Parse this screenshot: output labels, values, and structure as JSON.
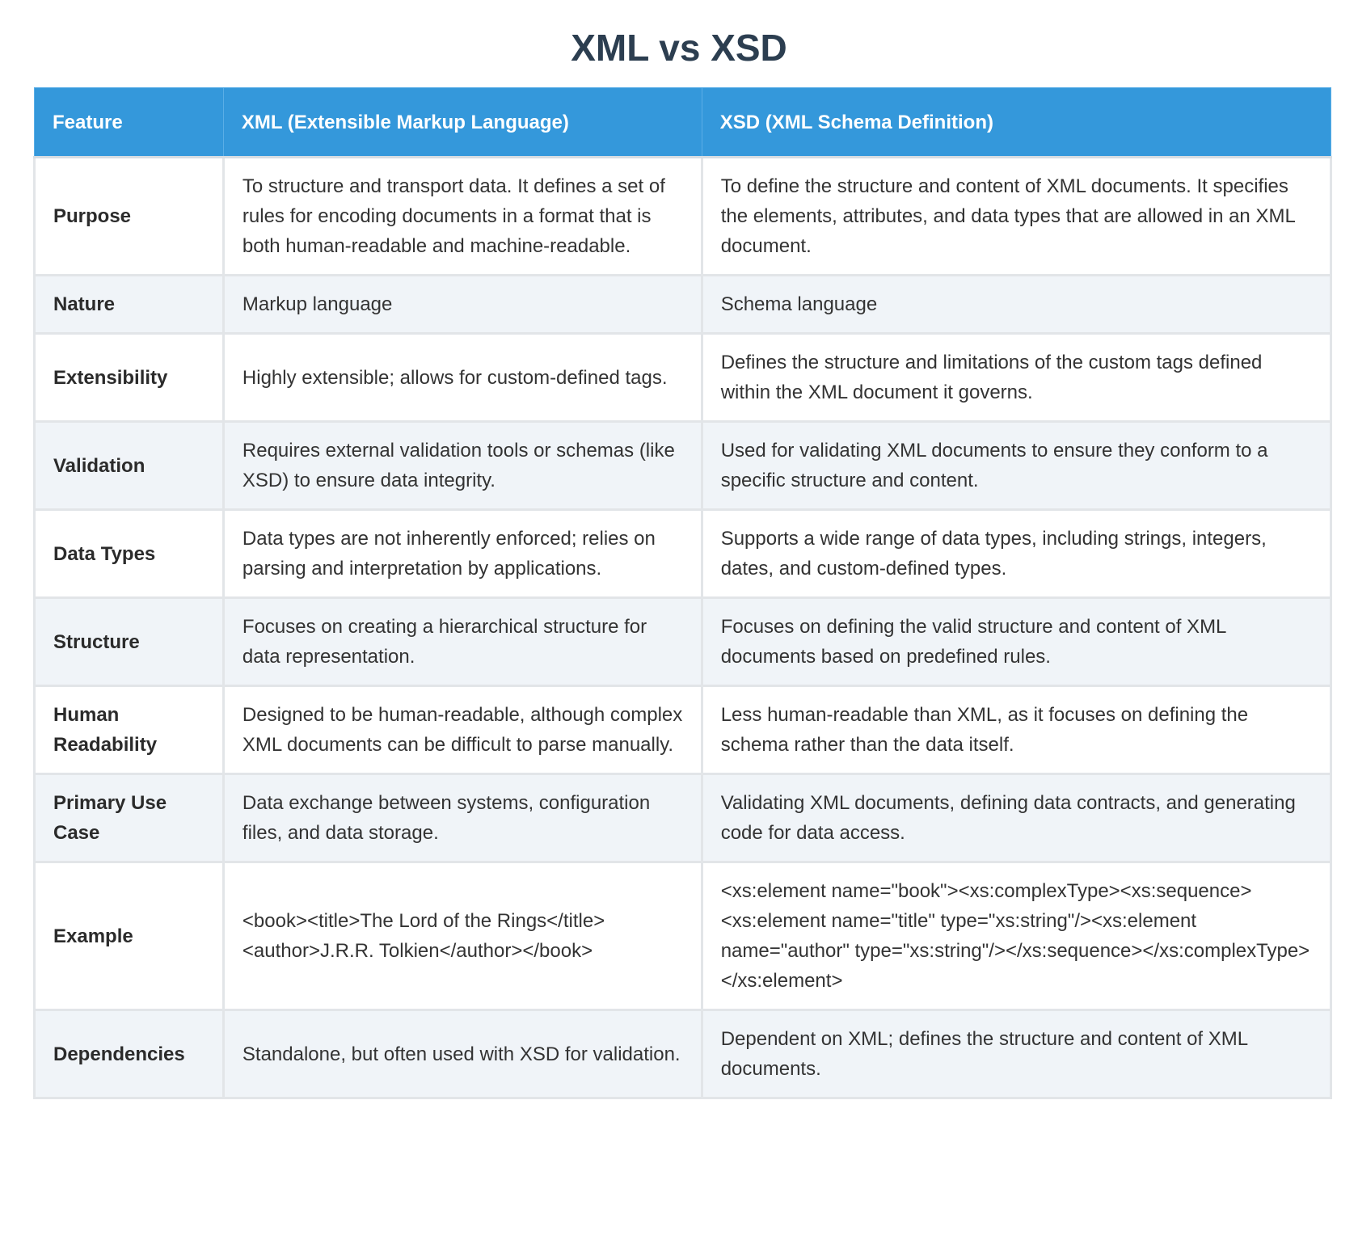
{
  "title": "XML vs XSD",
  "colors": {
    "header_bg": "#3498db",
    "title": "#2c3e50",
    "alt_row": "#f0f4f8"
  },
  "headers": [
    "Feature",
    "XML (Extensible Markup Language)",
    "XSD (XML Schema Definition)"
  ],
  "rows": [
    {
      "feature": "Purpose",
      "xml": "To structure and transport data. It defines a set of rules for encoding documents in a format that is both human-readable and machine-readable.",
      "xsd": "To define the structure and content of XML documents. It specifies the elements, attributes, and data types that are allowed in an XML document."
    },
    {
      "feature": "Nature",
      "xml": "Markup language",
      "xsd": "Schema language"
    },
    {
      "feature": "Extensibility",
      "xml": "Highly extensible; allows for custom-defined tags.",
      "xsd": "Defines the structure and limitations of the custom tags defined within the XML document it governs."
    },
    {
      "feature": "Validation",
      "xml": "Requires external validation tools or schemas (like XSD) to ensure data integrity.",
      "xsd": "Used for validating XML documents to ensure they conform to a specific structure and content."
    },
    {
      "feature": "Data Types",
      "xml": "Data types are not inherently enforced; relies on parsing and interpretation by applications.",
      "xsd": "Supports a wide range of data types, including strings, integers, dates, and custom-defined types."
    },
    {
      "feature": "Structure",
      "xml": "Focuses on creating a hierarchical structure for data representation.",
      "xsd": "Focuses on defining the valid structure and content of XML documents based on predefined rules."
    },
    {
      "feature": "Human Readability",
      "xml": "Designed to be human-readable, although complex XML documents can be difficult to parse manually.",
      "xsd": "Less human-readable than XML, as it focuses on defining the schema rather than the data itself."
    },
    {
      "feature": "Primary Use Case",
      "xml": "Data exchange between systems, configuration files, and data storage.",
      "xsd": "Validating XML documents, defining data contracts, and generating code for data access."
    },
    {
      "feature": "Example",
      "xml": "<book><title>The Lord of the Rings</title><author>J.R.R. Tolkien</author></book>",
      "xsd": "<xs:element name=\"book\"><xs:complexType><xs:sequence><xs:element name=\"title\" type=\"xs:string\"/><xs:element name=\"author\" type=\"xs:string\"/></xs:sequence></xs:complexType></xs:element>"
    },
    {
      "feature": "Dependencies",
      "xml": "Standalone, but often used with XSD for validation.",
      "xsd": "Dependent on XML; defines the structure and content of XML documents."
    }
  ]
}
